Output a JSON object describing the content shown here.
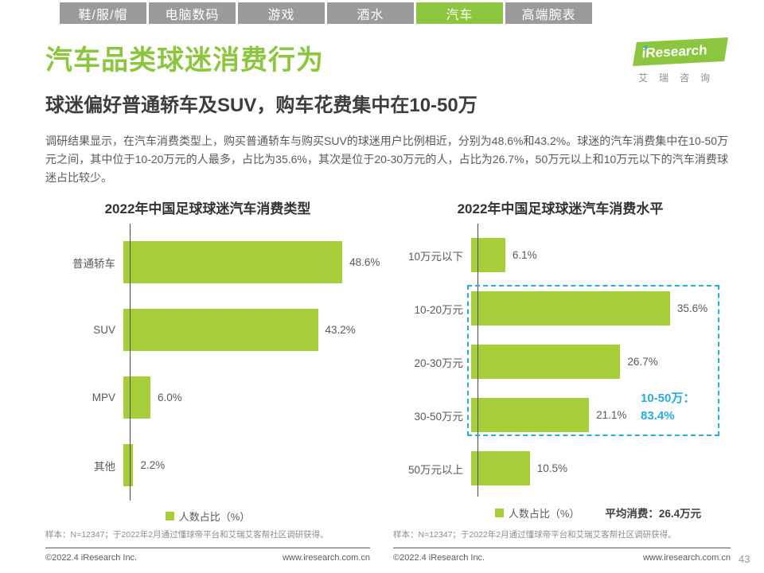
{
  "tabs": {
    "items": [
      {
        "label": "鞋/服/帽"
      },
      {
        "label": "电脑数码"
      },
      {
        "label": "游戏"
      },
      {
        "label": "酒水"
      },
      {
        "label": "汽车",
        "active": true
      },
      {
        "label": "高端腕表"
      }
    ]
  },
  "logo": {
    "brand": "iResearch",
    "caption": "艾瑞咨询"
  },
  "header": {
    "title": "汽车品类球迷消费行为",
    "subtitle": "球迷偏好普通轿车及SUV，购车花费集中在10-50万"
  },
  "intro": "调研结果显示，在汽车消费类型上，购买普通轿车与购买SUV的球迷用户比例相近，分别为48.6%和43.2%。球迷的汽车消费集中在10-50万元之间，其中位于10-20万元的人最多，占比为35.6%，其次是位于20-30万元的人，占比为26.7%，50万元以上和10万元以下的汽车消费球迷占比较少。",
  "chart_data": [
    {
      "type": "bar",
      "orientation": "horizontal",
      "title": "2022年中国足球球迷汽车消费类型",
      "categories": [
        "普通轿车",
        "SUV",
        "MPV",
        "其他"
      ],
      "values": [
        48.6,
        43.2,
        6.0,
        2.2
      ],
      "value_labels": [
        "48.6%",
        "43.2%",
        "6.0%",
        "2.2%"
      ],
      "legend": "人数占比（%）",
      "bar_color": "#A6CE39",
      "xlim": [
        0,
        55
      ],
      "grid": false,
      "legend_position": "bottom-center"
    },
    {
      "type": "bar",
      "orientation": "horizontal",
      "title": "2022年中国足球球迷汽车消费水平",
      "categories": [
        "10万元以下",
        "10-20万元",
        "20-30万元",
        "30-50万元",
        "50万元以上"
      ],
      "values": [
        6.1,
        35.6,
        26.7,
        21.1,
        10.5
      ],
      "value_labels": [
        "6.1%",
        "35.6%",
        "26.7%",
        "21.1%",
        "10.5%"
      ],
      "legend": "人数占比（%）",
      "bar_color": "#A6CE39",
      "xlim": [
        0,
        45
      ],
      "grid": false,
      "legend_position": "bottom-center",
      "highlight": {
        "rows": [
          1,
          2,
          3
        ],
        "label_line1": "10-50万：",
        "label_line2": "83.4%",
        "color": "#29ABE2"
      },
      "avg_label": "平均消费：",
      "avg_value": "26.4万元"
    }
  ],
  "footnote": {
    "sample": "样本：N=12347；于2022年2月通过懂球帝平台和艾瑞艾客帮社区调研获得。",
    "copyright": "©2022.4 iResearch Inc.",
    "site": "www.iresearch.com.cn"
  },
  "page_number": "43",
  "colors": {
    "brand_green": "#8CC63F",
    "bar_green": "#A6CE39",
    "highlight_cyan": "#29ABE2",
    "tab_gray": "#9B9B9B"
  }
}
